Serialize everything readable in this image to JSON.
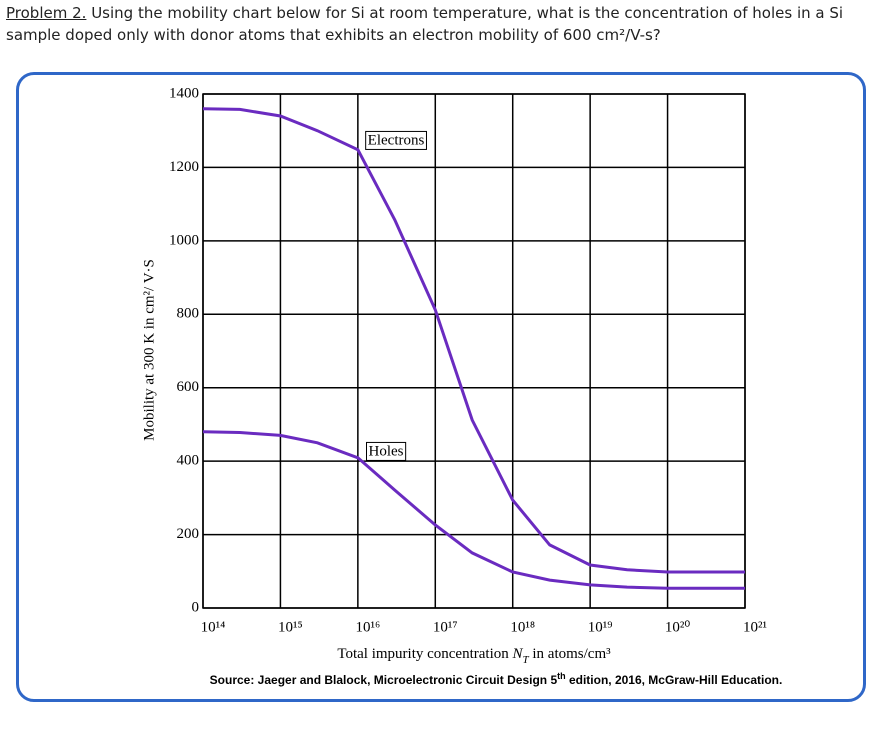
{
  "question": {
    "lead": "Problem 2.",
    "text": "Using the mobility chart below for Si at room temperature, what is the concentration of holes in a Si sample doped only with donor atoms that exhibits an electron mobility of 600 cm²/V-s?"
  },
  "chart_data": {
    "type": "line",
    "y_label": "Mobility at 300 K in cm²/ V·S",
    "x_label": [
      "Total impurity concentration ",
      "N",
      "T",
      " in atoms/cm³"
    ],
    "log_x": true,
    "grid": true,
    "x": [
      100000000000000.0,
      300000000000000.0,
      1000000000000000.0,
      3000000000000000.0,
      1e+16,
      3e+16,
      1e+17,
      3e+17,
      1e+18,
      3e+18,
      1e+19,
      3e+19,
      1e+20,
      1e+21
    ],
    "series": [
      {
        "name": "Electrons",
        "color": "#6a2bc0",
        "values": [
          1360,
          1358,
          1340,
          1300,
          1248,
          1057,
          812,
          512,
          294,
          172,
          117,
          104,
          98,
          98
        ]
      },
      {
        "name": "Holes",
        "color": "#6a2bc0",
        "values": [
          480,
          478,
          470,
          450,
          409,
          321,
          226,
          150,
          98,
          76,
          63,
          57,
          54,
          54
        ]
      }
    ],
    "xlim": [
      100000000000000.0,
      1e+21
    ],
    "xticks": [
      {
        "value": 100000000000000.0,
        "label": "10¹⁴"
      },
      {
        "value": 1000000000000000.0,
        "label": "10¹⁵"
      },
      {
        "value": 1e+16,
        "label": "10¹⁶"
      },
      {
        "value": 1e+17,
        "label": "10¹⁷"
      },
      {
        "value": 1e+18,
        "label": "10¹⁸"
      },
      {
        "value": 1e+19,
        "label": "10¹⁹"
      },
      {
        "value": 1e+20,
        "label": "10²⁰"
      },
      {
        "value": 1e+21,
        "label": "10²¹"
      }
    ],
    "ylim": [
      0,
      1400
    ],
    "yticks": [
      0,
      200,
      400,
      600,
      800,
      1000,
      1200,
      1400
    ],
    "source": [
      "Source:  Jaeger and Blalock, Microelectronic Circuit Design 5",
      "th",
      " edition, 2016, McGraw-Hill Education."
    ]
  }
}
